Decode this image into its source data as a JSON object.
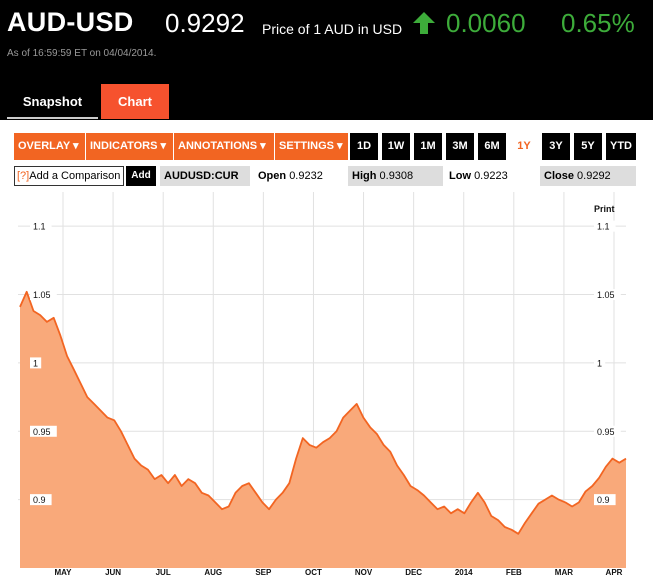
{
  "header": {
    "symbol": "AUD-USD",
    "price": "0.9292",
    "price_label": "Price of 1 AUD in USD",
    "change": "0.0060",
    "change_pct": "0.65%",
    "as_of": "As of 16:59:59 ET on 04/04/2014."
  },
  "tabs": {
    "snapshot": "Snapshot",
    "chart": "Chart"
  },
  "toolbar": {
    "overlay": "OVERLAY ▾",
    "indicators": "INDICATORS ▾",
    "annotations": "ANNOTATIONS ▾",
    "settings": "SETTINGS ▾",
    "ranges": [
      "1D",
      "1W",
      "1M",
      "3M",
      "6M",
      "1Y",
      "3Y",
      "5Y",
      "YTD"
    ],
    "active_range": "1Y"
  },
  "compare": {
    "q": "[?]",
    "placeholder": "Add a Comparison",
    "add": "Add"
  },
  "quote": {
    "symbol": "AUDUSD:CUR",
    "open_label": "Open",
    "open": "0.9232",
    "high_label": "High",
    "high": "0.9308",
    "low_label": "Low",
    "low": "0.9223",
    "close_label": "Close",
    "close": "0.9292"
  },
  "colors": {
    "accent": "#f26522",
    "tab_active": "#f6522e",
    "up": "#3dac3a",
    "area_fill": "#f9a97a"
  },
  "chart_data": {
    "type": "area",
    "print_label": "Print",
    "x_labels": [
      "MAY",
      "JUN",
      "JUL",
      "AUG",
      "SEP",
      "OCT",
      "NOV",
      "DEC",
      "2014",
      "FEB",
      "MAR",
      "APR"
    ],
    "y_ticks": [
      "1.1",
      "1.05",
      "1",
      "0.95",
      "0.9"
    ],
    "ylim": [
      0.85,
      1.125
    ],
    "grid": true,
    "series": [
      {
        "values": [
          1.041,
          1.052,
          1.038,
          1.035,
          1.03,
          1.033,
          1.02,
          1.005,
          0.995,
          0.985,
          0.975,
          0.97,
          0.965,
          0.96,
          0.958,
          0.95,
          0.94,
          0.93,
          0.925,
          0.922,
          0.915,
          0.918,
          0.912,
          0.918,
          0.91,
          0.915,
          0.912,
          0.905,
          0.903,
          0.898,
          0.893,
          0.895,
          0.905,
          0.91,
          0.912,
          0.905,
          0.898,
          0.893,
          0.9,
          0.905,
          0.912,
          0.93,
          0.945,
          0.94,
          0.938,
          0.942,
          0.945,
          0.95,
          0.96,
          0.965,
          0.97,
          0.96,
          0.953,
          0.948,
          0.94,
          0.935,
          0.925,
          0.918,
          0.91,
          0.907,
          0.903,
          0.898,
          0.893,
          0.895,
          0.89,
          0.893,
          0.89,
          0.898,
          0.905,
          0.898,
          0.888,
          0.885,
          0.88,
          0.878,
          0.875,
          0.883,
          0.89,
          0.897,
          0.9,
          0.903,
          0.9,
          0.898,
          0.895,
          0.898,
          0.906,
          0.91,
          0.916,
          0.924,
          0.93,
          0.927,
          0.93
        ]
      }
    ]
  }
}
